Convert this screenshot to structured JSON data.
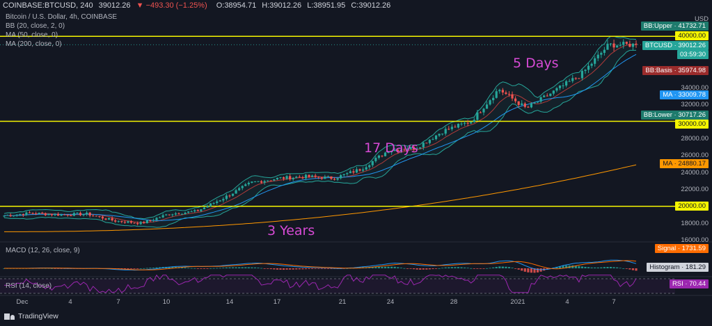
{
  "header": {
    "symbol": "COINBASE:BTCUSD, 240",
    "last": "39012.26",
    "change": "−493.30 (−1.25%)",
    "open": "O:38954.71",
    "high": "H:39012.26",
    "low": "L:38951.95",
    "close": "C:39012.26"
  },
  "legend": {
    "title": "Bitcoin / U.S. Dollar, 4h, COINBASE",
    "bb": "BB (20, close, 2, 0)",
    "ma50": "MA (50, close, 0)",
    "ma200": "MA (200, close, 0)"
  },
  "annotations": {
    "days5": "5 Days",
    "days17": "17 Days",
    "years3": "3 Years"
  },
  "price_axis": {
    "currency": "USD",
    "ticks": [
      "34000.00",
      "32000.00",
      "28000.00",
      "26000.00",
      "24000.00",
      "22000.00",
      "18000.00",
      "16000.00"
    ]
  },
  "tags": {
    "bb_upper": "BB:Upper · 41732.71",
    "level_40000": "40000.00",
    "btcusd": "BTCUSD · 39012.26",
    "countdown": "03:59:30",
    "bb_basis": "BB:Basis · 35974.98",
    "ma_33009": "MA · 33009.78",
    "bb_lower": "BB:Lower · 30717.26",
    "level_30000": "30000.00",
    "ma_24880": "MA · 24880.17",
    "level_20000": "20000.00",
    "signal": "Signal · 1731.59",
    "histogram": "Histogram · 181.29",
    "rsi": "RSI · 70.44"
  },
  "macd": {
    "title": "MACD (12, 26, close, 9)"
  },
  "rsi": {
    "title": "RSI (14, close)"
  },
  "time_axis": [
    {
      "label": "Dec"
    },
    {
      "label": "4"
    },
    {
      "label": "7"
    },
    {
      "label": "10"
    },
    {
      "label": "14"
    },
    {
      "label": "17"
    },
    {
      "label": "21"
    },
    {
      "label": "24"
    },
    {
      "label": "28"
    },
    {
      "label": "2021"
    },
    {
      "label": "4"
    },
    {
      "label": "7"
    }
  ],
  "footer": {
    "brand": "TradingView"
  },
  "colors": {
    "background": "#131722",
    "up": "#26a69a",
    "down": "#ef5350",
    "horizontal_lines": "#f5f500",
    "annotation": "#d64ad4",
    "bb_upper_tag": "#1e7b6d",
    "bb_basis_tag": "#9b2c2c",
    "ma_blue": "#2196f3",
    "ma_orange": "#ff9800",
    "rsi": "#9c27b0"
  },
  "chart_data": {
    "type": "candlestick",
    "symbol": "BTCUSD",
    "timeframe": "4h",
    "y_axis": {
      "min": 16000,
      "max": 42000,
      "unit": "USD"
    },
    "horizontal_levels": [
      40000,
      30000,
      20000
    ],
    "close_path": [
      {
        "x": "Dec 1",
        "close": 18900
      },
      {
        "x": "Dec 2",
        "close": 19200
      },
      {
        "x": "Dec 4",
        "close": 19000
      },
      {
        "x": "Dec 7",
        "close": 19100
      },
      {
        "x": "Dec 9",
        "close": 18300
      },
      {
        "x": "Dec 11",
        "close": 18000
      },
      {
        "x": "Dec 13",
        "close": 19100
      },
      {
        "x": "Dec 15",
        "close": 19400
      },
      {
        "x": "Dec 16",
        "close": 21000
      },
      {
        "x": "Dec 17",
        "close": 22800
      },
      {
        "x": "Dec 19",
        "close": 23300
      },
      {
        "x": "Dec 21",
        "close": 23500
      },
      {
        "x": "Dec 23",
        "close": 23300
      },
      {
        "x": "Dec 25",
        "close": 24400
      },
      {
        "x": "Dec 27",
        "close": 26600
      },
      {
        "x": "Dec 29",
        "close": 26900
      },
      {
        "x": "Dec 31",
        "close": 28900
      },
      {
        "x": "Jan 2",
        "close": 30000
      },
      {
        "x": "Jan 3",
        "close": 33800
      },
      {
        "x": "Jan 4",
        "close": 31500
      },
      {
        "x": "Jan 5",
        "close": 33500
      },
      {
        "x": "Jan 6",
        "close": 35500
      },
      {
        "x": "Jan 7",
        "close": 39000
      },
      {
        "x": "Jan 8",
        "close": 39012
      }
    ],
    "indicators": {
      "bb_upper": 41732.71,
      "bb_basis": 35974.98,
      "bb_lower": 30717.26,
      "ma50": 33009.78,
      "ma200": 24880.17,
      "macd_signal": 1731.59,
      "macd_histogram": 181.29,
      "rsi": 70.44
    }
  }
}
